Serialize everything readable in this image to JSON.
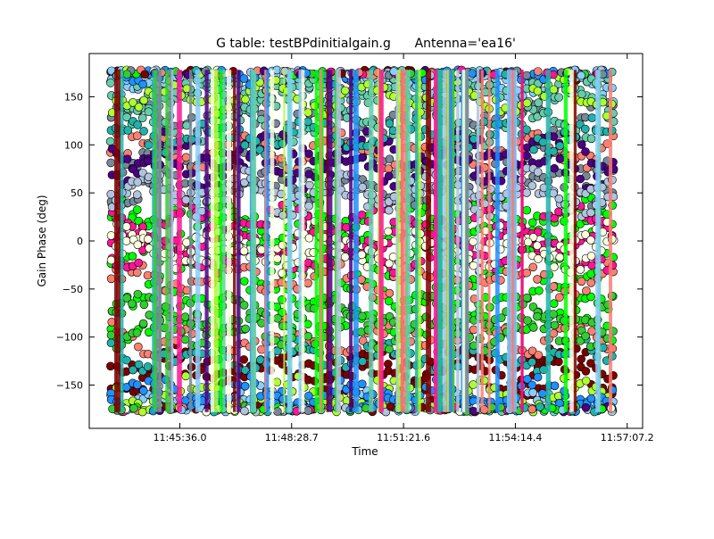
{
  "chart_data": {
    "type": "scatter",
    "title": "G table: testBPdinitialgain.g      Antenna='ea16'",
    "xlabel": "Time",
    "ylabel": "Gain Phase (deg)",
    "xlim": [
      "11:43:16",
      "11:57:31"
    ],
    "ylim": [
      -195,
      195
    ],
    "x_ticks": [
      "11:45:36.0",
      "11:48:28.7",
      "11:51:21.6",
      "11:54:14.4",
      "11:57:07.2"
    ],
    "y_ticks": [
      -150,
      -100,
      -50,
      0,
      50,
      100,
      150
    ],
    "grid": false,
    "legend": "none",
    "x_range_of_points": [
      "11:43:50",
      "11:56:45"
    ],
    "series": [
      {
        "color": "#00FF00",
        "values_deg": [
          30,
          10,
          -20,
          -55,
          -85
        ]
      },
      {
        "color": "#7B0000",
        "values_deg": [
          -125,
          -140,
          -170
        ]
      },
      {
        "color": "#778899",
        "values_deg": [
          85,
          55,
          130
        ]
      },
      {
        "color": "#87CEFA",
        "values_deg": [
          160,
          170,
          -170
        ]
      },
      {
        "color": "#66CDAA",
        "values_deg": [
          150,
          120,
          160
        ]
      },
      {
        "color": "#FA8072",
        "values_deg": [
          -40,
          -100,
          95
        ]
      },
      {
        "color": "#4B0082",
        "values_deg": [
          95,
          75
        ]
      },
      {
        "color": "#FF1493",
        "values_deg": [
          0,
          -15,
          20
        ]
      },
      {
        "color": "#ADFF2F",
        "values_deg": [
          -160,
          150
        ]
      },
      {
        "color": "#20B2AA",
        "values_deg": [
          110,
          -120
        ]
      },
      {
        "color": "#32CD32",
        "values_deg": [
          -75,
          -95
        ]
      },
      {
        "color": "#B0C4DE",
        "values_deg": [
          45,
          55
        ]
      },
      {
        "color": "#1E90FF",
        "values_deg": [
          -175,
          -160
        ]
      },
      {
        "color": "#FFFFE0",
        "values_deg": [
          0,
          -15
        ]
      }
    ]
  }
}
